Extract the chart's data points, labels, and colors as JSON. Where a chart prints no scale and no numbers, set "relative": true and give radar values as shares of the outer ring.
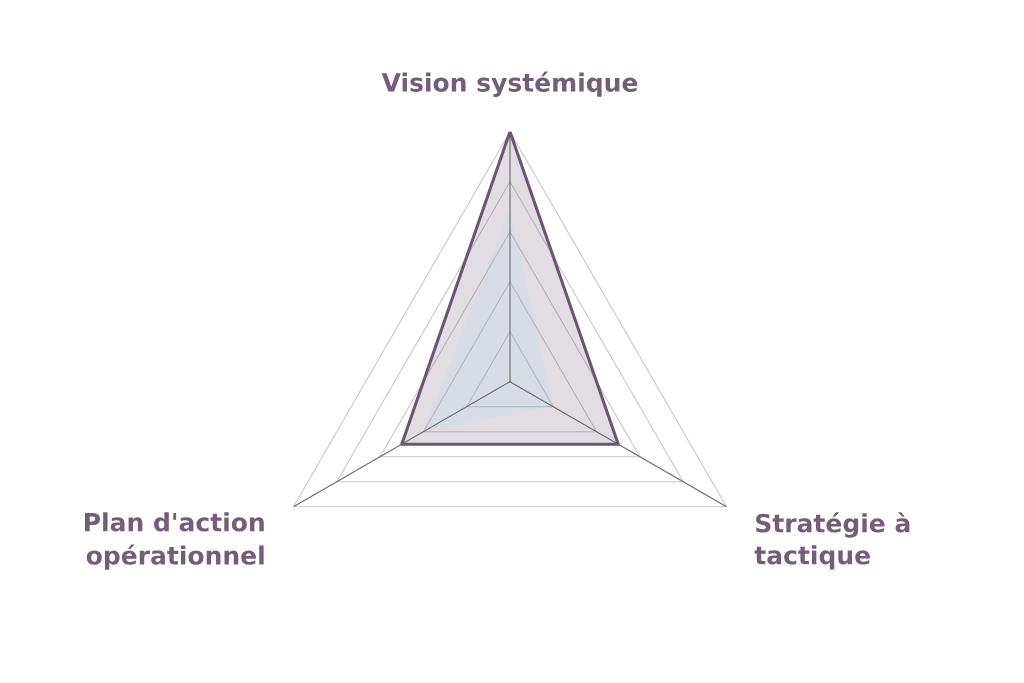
{
  "chart_data": {
    "type": "radar",
    "relative": true,
    "categories": [
      "Vision systémique",
      "Stratégie à\ntactique",
      "Plan d'action\nopérationnel"
    ],
    "grid": true,
    "series": [
      {
        "color": "#6b5670",
        "line_style": "solid",
        "values": [
          1,
          0.5,
          0.5
        ]
      },
      {
        "color": "#b2dcef",
        "values": [
          0.69,
          0.2,
          0.4
        ]
      }
    ]
  }
}
